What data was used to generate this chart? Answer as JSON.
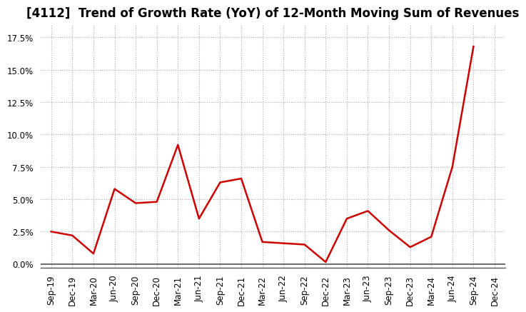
{
  "title": "[4112]  Trend of Growth Rate (YoY) of 12-Month Moving Sum of Revenues",
  "x_labels": [
    "Sep-19",
    "Dec-19",
    "Mar-20",
    "Jun-20",
    "Sep-20",
    "Dec-20",
    "Mar-21",
    "Jun-21",
    "Sep-21",
    "Dec-21",
    "Mar-22",
    "Jun-22",
    "Sep-22",
    "Dec-22",
    "Mar-23",
    "Jun-23",
    "Sep-23",
    "Dec-23",
    "Mar-24",
    "Jun-24",
    "Sep-24",
    "Dec-24"
  ],
  "y_values": [
    2.5,
    2.2,
    0.8,
    5.8,
    4.7,
    4.8,
    9.2,
    3.5,
    6.3,
    6.6,
    1.7,
    1.6,
    1.5,
    0.15,
    3.5,
    4.1,
    2.6,
    1.3,
    2.1,
    7.5,
    16.8,
    null
  ],
  "line_color": "#cc0000",
  "line_width": 1.8,
  "background_color": "#ffffff",
  "plot_area_color": "#ffffff",
  "grid_color": "#aaaaaa",
  "ylim": [
    -0.3,
    18.5
  ],
  "yticks": [
    0.0,
    2.5,
    5.0,
    7.5,
    10.0,
    12.5,
    15.0,
    17.5
  ],
  "title_fontsize": 12,
  "tick_fontsize": 8.5
}
